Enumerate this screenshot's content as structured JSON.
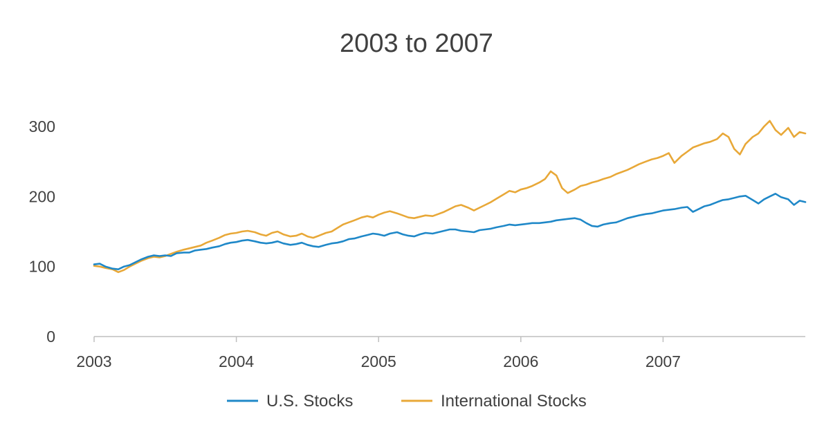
{
  "chart_data": {
    "type": "line",
    "title": "2003 to 2007",
    "xlabel": "",
    "ylabel": "",
    "xlim": [
      2003.0,
      2008.0
    ],
    "ylim": [
      0,
      300
    ],
    "x_ticks": [
      2003,
      2004,
      2005,
      2006,
      2007
    ],
    "x_tick_labels": [
      "2003",
      "2004",
      "2005",
      "2006",
      "2007"
    ],
    "y_ticks": [
      0,
      100,
      200,
      300
    ],
    "y_tick_labels": [
      "0",
      "100",
      "200",
      "300"
    ],
    "grid": false,
    "legend_position": "bottom",
    "series": [
      {
        "name": "U.S. Stocks",
        "color": "#1f88c8",
        "x": [
          2003.0,
          2003.04,
          2003.08,
          2003.13,
          2003.17,
          2003.21,
          2003.25,
          2003.29,
          2003.33,
          2003.38,
          2003.42,
          2003.46,
          2003.5,
          2003.54,
          2003.58,
          2003.63,
          2003.67,
          2003.71,
          2003.75,
          2003.79,
          2003.83,
          2003.88,
          2003.92,
          2003.96,
          2004.0,
          2004.04,
          2004.08,
          2004.13,
          2004.17,
          2004.21,
          2004.25,
          2004.29,
          2004.33,
          2004.38,
          2004.42,
          2004.46,
          2004.5,
          2004.54,
          2004.58,
          2004.63,
          2004.67,
          2004.71,
          2004.75,
          2004.79,
          2004.83,
          2004.88,
          2004.92,
          2004.96,
          2005.0,
          2005.04,
          2005.08,
          2005.13,
          2005.17,
          2005.21,
          2005.25,
          2005.29,
          2005.33,
          2005.38,
          2005.42,
          2005.46,
          2005.5,
          2005.54,
          2005.58,
          2005.63,
          2005.67,
          2005.71,
          2005.75,
          2005.79,
          2005.83,
          2005.88,
          2005.92,
          2005.96,
          2006.0,
          2006.04,
          2006.08,
          2006.13,
          2006.17,
          2006.21,
          2006.25,
          2006.29,
          2006.33,
          2006.38,
          2006.42,
          2006.46,
          2006.5,
          2006.54,
          2006.58,
          2006.63,
          2006.67,
          2006.71,
          2006.75,
          2006.79,
          2006.83,
          2006.88,
          2006.92,
          2006.96,
          2007.0,
          2007.04,
          2007.08,
          2007.13,
          2007.17,
          2007.21,
          2007.25,
          2007.29,
          2007.33,
          2007.38,
          2007.42,
          2007.46,
          2007.5,
          2007.54,
          2007.58,
          2007.63,
          2007.67,
          2007.71,
          2007.75,
          2007.79,
          2007.83,
          2007.88,
          2007.92,
          2007.96,
          2008.0
        ],
        "y": [
          103,
          104,
          100,
          97,
          96,
          100,
          102,
          106,
          110,
          114,
          116,
          115,
          116,
          115,
          119,
          120,
          120,
          123,
          124,
          125,
          127,
          129,
          132,
          134,
          135,
          137,
          138,
          136,
          134,
          133,
          134,
          136,
          133,
          131,
          132,
          134,
          131,
          129,
          128,
          131,
          133,
          134,
          136,
          139,
          140,
          143,
          145,
          147,
          146,
          144,
          147,
          149,
          146,
          144,
          143,
          146,
          148,
          147,
          149,
          151,
          153,
          153,
          151,
          150,
          149,
          152,
          153,
          154,
          156,
          158,
          160,
          159,
          160,
          161,
          162,
          162,
          163,
          164,
          166,
          167,
          168,
          169,
          167,
          162,
          158,
          157,
          160,
          162,
          163,
          166,
          169,
          171,
          173,
          175,
          176,
          178,
          180,
          181,
          182,
          184,
          185,
          178,
          182,
          186,
          188,
          192,
          195,
          196,
          198,
          200,
          201,
          195,
          190,
          196,
          200,
          204,
          199,
          196,
          188,
          194,
          192
        ]
      },
      {
        "name": "International Stocks",
        "color": "#e8a838",
        "x": [
          2003.0,
          2003.04,
          2003.08,
          2003.13,
          2003.17,
          2003.21,
          2003.25,
          2003.29,
          2003.33,
          2003.38,
          2003.42,
          2003.46,
          2003.5,
          2003.54,
          2003.58,
          2003.63,
          2003.67,
          2003.71,
          2003.75,
          2003.79,
          2003.83,
          2003.88,
          2003.92,
          2003.96,
          2004.0,
          2004.04,
          2004.08,
          2004.13,
          2004.17,
          2004.21,
          2004.25,
          2004.29,
          2004.33,
          2004.38,
          2004.42,
          2004.46,
          2004.5,
          2004.54,
          2004.58,
          2004.63,
          2004.67,
          2004.71,
          2004.75,
          2004.79,
          2004.83,
          2004.88,
          2004.92,
          2004.96,
          2005.0,
          2005.04,
          2005.08,
          2005.13,
          2005.17,
          2005.21,
          2005.25,
          2005.29,
          2005.33,
          2005.38,
          2005.42,
          2005.46,
          2005.5,
          2005.54,
          2005.58,
          2005.63,
          2005.67,
          2005.71,
          2005.75,
          2005.79,
          2005.83,
          2005.88,
          2005.92,
          2005.96,
          2006.0,
          2006.04,
          2006.08,
          2006.13,
          2006.17,
          2006.21,
          2006.25,
          2006.29,
          2006.33,
          2006.38,
          2006.42,
          2006.46,
          2006.5,
          2006.54,
          2006.58,
          2006.63,
          2006.67,
          2006.71,
          2006.75,
          2006.79,
          2006.83,
          2006.88,
          2006.92,
          2006.96,
          2007.0,
          2007.04,
          2007.08,
          2007.13,
          2007.17,
          2007.21,
          2007.25,
          2007.29,
          2007.33,
          2007.38,
          2007.42,
          2007.46,
          2007.5,
          2007.54,
          2007.58,
          2007.63,
          2007.67,
          2007.71,
          2007.75,
          2007.79,
          2007.83,
          2007.88,
          2007.92,
          2007.96,
          2008.0
        ],
        "y": [
          101,
          100,
          98,
          96,
          92,
          95,
          100,
          104,
          108,
          112,
          114,
          113,
          115,
          118,
          121,
          124,
          126,
          128,
          130,
          134,
          137,
          141,
          145,
          147,
          148,
          150,
          151,
          149,
          146,
          144,
          148,
          150,
          146,
          143,
          144,
          147,
          143,
          141,
          144,
          148,
          150,
          155,
          160,
          163,
          166,
          170,
          172,
          170,
          174,
          177,
          179,
          176,
          173,
          170,
          169,
          171,
          173,
          172,
          175,
          178,
          182,
          186,
          188,
          184,
          180,
          184,
          188,
          192,
          197,
          203,
          208,
          206,
          210,
          212,
          215,
          220,
          225,
          236,
          230,
          212,
          205,
          210,
          215,
          217,
          220,
          222,
          225,
          228,
          232,
          235,
          238,
          242,
          246,
          250,
          253,
          255,
          258,
          262,
          248,
          258,
          264,
          270,
          273,
          276,
          278,
          282,
          290,
          285,
          268,
          260,
          275,
          285,
          290,
          300,
          308,
          295,
          288,
          298,
          285,
          292,
          290
        ]
      }
    ]
  }
}
